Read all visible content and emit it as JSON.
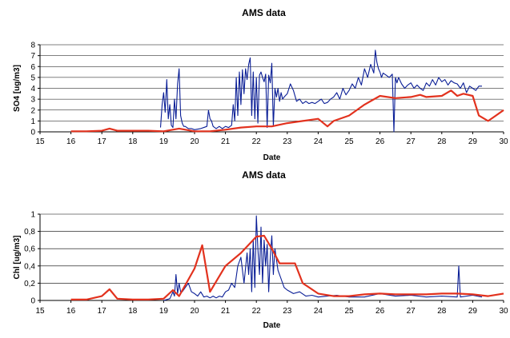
{
  "chart_data": [
    {
      "type": "line",
      "title": "AMS data",
      "xlabel": "Date",
      "ylabel": "SO4 [ug/m3]",
      "xlim": [
        15,
        30
      ],
      "ylim": [
        0,
        8
      ],
      "x_ticks": [
        "15",
        "16",
        "17",
        "18",
        "19",
        "20",
        "21",
        "22",
        "23",
        "24",
        "25",
        "26",
        "27",
        "28",
        "29",
        "30"
      ],
      "y_ticks": [
        "0",
        "1",
        "2",
        "3",
        "4",
        "5",
        "6",
        "7",
        "8"
      ],
      "grid": "horizontal",
      "legend": "none",
      "series": [
        {
          "color": "#0a1e96",
          "x": [
            18.9,
            18.95,
            19.0,
            19.05,
            19.1,
            19.15,
            19.2,
            19.25,
            19.3,
            19.35,
            19.4,
            19.45,
            19.5,
            19.55,
            19.6,
            19.65,
            19.7,
            19.8,
            19.9,
            20.0,
            20.2,
            20.4,
            20.45,
            20.5,
            20.55,
            20.6,
            20.7,
            20.8,
            20.9,
            21.0,
            21.1,
            21.2,
            21.25,
            21.3,
            21.35,
            21.4,
            21.45,
            21.5,
            21.55,
            21.6,
            21.65,
            21.7,
            21.75,
            21.8,
            21.85,
            21.9,
            21.95,
            22.0,
            22.05,
            22.1,
            22.15,
            22.2,
            22.25,
            22.3,
            22.35,
            22.4,
            22.45,
            22.5,
            22.55,
            22.6,
            22.65,
            22.7,
            22.75,
            22.8,
            22.85,
            22.9,
            23.0,
            23.1,
            23.2,
            23.3,
            23.4,
            23.5,
            23.6,
            23.7,
            23.8,
            23.9,
            24.0,
            24.1,
            24.2,
            24.3,
            24.4,
            24.5,
            24.6,
            24.7,
            24.8,
            24.9,
            25.0,
            25.1,
            25.2,
            25.3,
            25.4,
            25.5,
            25.6,
            25.7,
            25.8,
            25.85,
            25.9,
            25.95,
            26.0,
            26.05,
            26.1,
            26.2,
            26.3,
            26.4,
            26.45,
            26.5,
            26.55,
            26.6,
            26.7,
            26.8,
            26.9,
            27.0,
            27.1,
            27.2,
            27.3,
            27.4,
            27.5,
            27.6,
            27.7,
            27.8,
            27.9,
            28.0,
            28.1,
            28.2,
            28.3,
            28.4,
            28.5,
            28.6,
            28.7,
            28.8,
            28.9,
            29.0,
            29.1,
            29.2,
            29.3
          ],
          "y": [
            0.4,
            2.5,
            3.6,
            1.8,
            4.8,
            1.2,
            2.5,
            0.6,
            0.4,
            3.0,
            1.2,
            4.4,
            5.8,
            1.5,
            0.8,
            0.5,
            0.5,
            0.3,
            0.3,
            0.2,
            0.3,
            0.5,
            2.0,
            1.2,
            1.0,
            0.5,
            0.3,
            0.5,
            0.3,
            0.5,
            0.4,
            0.6,
            2.5,
            1.0,
            5.0,
            1.5,
            5.5,
            2.5,
            5.7,
            3.5,
            5.8,
            4.8,
            6.2,
            6.8,
            1.5,
            5.5,
            1.2,
            5.0,
            0.8,
            5.2,
            5.5,
            5.0,
            4.6,
            5.3,
            0.4,
            5.2,
            4.5,
            6.3,
            0.5,
            4.0,
            3.2,
            4.0,
            2.8,
            3.6,
            3.0,
            3.2,
            3.5,
            4.4,
            3.8,
            2.8,
            3.0,
            2.6,
            2.8,
            2.6,
            2.7,
            2.6,
            2.8,
            3.0,
            2.6,
            2.7,
            3.0,
            3.2,
            3.6,
            3.0,
            4.0,
            3.4,
            3.8,
            4.4,
            4.0,
            5.0,
            4.3,
            5.8,
            5.0,
            6.2,
            5.4,
            7.5,
            6.4,
            5.8,
            5.5,
            5.0,
            5.4,
            5.2,
            5.0,
            5.3,
            0.0,
            5.0,
            4.5,
            5.0,
            4.4,
            4.0,
            4.3,
            4.5,
            4.0,
            4.3,
            4.0,
            3.8,
            4.5,
            4.2,
            4.8,
            4.3,
            5.0,
            4.6,
            4.8,
            4.3,
            4.7,
            4.5,
            4.4,
            4.0,
            4.5,
            3.6,
            4.2,
            4.0,
            3.8,
            4.2,
            4.2
          ]
        },
        {
          "color": "#e2321e",
          "x": [
            16.0,
            16.5,
            17.0,
            17.25,
            17.5,
            18.0,
            18.5,
            19.0,
            19.5,
            20.0,
            20.5,
            21.0,
            21.5,
            22.0,
            22.5,
            23.0,
            23.5,
            24.0,
            24.3,
            24.5,
            25.0,
            25.5,
            26.0,
            26.5,
            27.0,
            27.3,
            27.5,
            28.0,
            28.3,
            28.5,
            28.7,
            29.0,
            29.2,
            29.5,
            29.75,
            30.0
          ],
          "y": [
            0.05,
            0.05,
            0.1,
            0.3,
            0.1,
            0.1,
            0.1,
            0.05,
            0.3,
            0.05,
            0.05,
            0.2,
            0.4,
            0.5,
            0.5,
            0.8,
            1.0,
            1.2,
            0.5,
            1.0,
            1.5,
            2.5,
            3.3,
            3.1,
            3.2,
            3.4,
            3.2,
            3.3,
            3.8,
            3.3,
            3.5,
            3.3,
            1.5,
            1.0,
            1.5,
            2.0
          ]
        }
      ]
    },
    {
      "type": "line",
      "title": "AMS data",
      "xlabel": "Date",
      "ylabel": "Chl [ug/m3]",
      "xlim": [
        15,
        30
      ],
      "ylim": [
        0,
        1
      ],
      "x_ticks": [
        "15",
        "16",
        "17",
        "18",
        "19",
        "20",
        "21",
        "22",
        "23",
        "24",
        "25",
        "26",
        "27",
        "28",
        "29",
        "30"
      ],
      "y_ticks": [
        "0",
        "0,2",
        "0,4",
        "0,6",
        "0,8",
        "1"
      ],
      "grid": "horizontal",
      "legend": "none",
      "series": [
        {
          "color": "#0a1e96",
          "x": [
            19.0,
            19.2,
            19.3,
            19.35,
            19.4,
            19.45,
            19.5,
            19.55,
            19.6,
            19.7,
            19.8,
            19.9,
            20.0,
            20.1,
            20.2,
            20.3,
            20.4,
            20.5,
            20.6,
            20.7,
            20.8,
            20.9,
            21.0,
            21.1,
            21.2,
            21.3,
            21.4,
            21.5,
            21.6,
            21.7,
            21.75,
            21.8,
            21.85,
            21.9,
            21.95,
            22.0,
            22.05,
            22.1,
            22.15,
            22.2,
            22.25,
            22.3,
            22.35,
            22.4,
            22.45,
            22.5,
            22.55,
            22.6,
            22.7,
            22.8,
            22.9,
            23.0,
            23.2,
            23.4,
            23.6,
            23.8,
            24.0,
            24.3,
            24.6,
            25.0,
            25.5,
            26.0,
            26.5,
            27.0,
            27.5,
            28.0,
            28.5,
            28.55,
            28.6,
            29.0,
            29.3
          ],
          "y": [
            0.0,
            0.02,
            0.1,
            0.05,
            0.3,
            0.08,
            0.2,
            0.1,
            0.1,
            0.15,
            0.2,
            0.1,
            0.08,
            0.05,
            0.1,
            0.04,
            0.05,
            0.03,
            0.05,
            0.03,
            0.05,
            0.04,
            0.1,
            0.12,
            0.2,
            0.15,
            0.4,
            0.5,
            0.2,
            0.55,
            0.3,
            0.6,
            0.1,
            0.7,
            0.15,
            0.98,
            0.6,
            0.3,
            0.85,
            0.2,
            0.7,
            0.4,
            0.65,
            0.1,
            0.5,
            0.75,
            0.3,
            0.6,
            0.35,
            0.25,
            0.15,
            0.12,
            0.08,
            0.1,
            0.05,
            0.06,
            0.04,
            0.05,
            0.06,
            0.04,
            0.04,
            0.08,
            0.05,
            0.06,
            0.04,
            0.05,
            0.04,
            0.4,
            0.04,
            0.06,
            0.04
          ]
        },
        {
          "color": "#e2321e",
          "x": [
            16.0,
            16.5,
            17.0,
            17.25,
            17.5,
            18.0,
            18.5,
            19.0,
            19.3,
            19.5,
            20.0,
            20.25,
            20.5,
            21.0,
            21.5,
            22.0,
            22.25,
            22.5,
            22.75,
            23.0,
            23.25,
            23.5,
            24.0,
            24.5,
            25.0,
            25.5,
            26.0,
            26.5,
            27.0,
            27.5,
            28.0,
            28.5,
            29.0,
            29.5,
            30.0
          ],
          "y": [
            0.01,
            0.01,
            0.05,
            0.13,
            0.02,
            0.01,
            0.01,
            0.02,
            0.12,
            0.05,
            0.37,
            0.64,
            0.1,
            0.4,
            0.55,
            0.74,
            0.75,
            0.6,
            0.43,
            0.43,
            0.43,
            0.2,
            0.08,
            0.05,
            0.05,
            0.07,
            0.08,
            0.07,
            0.07,
            0.07,
            0.08,
            0.08,
            0.07,
            0.05,
            0.08
          ]
        }
      ]
    }
  ]
}
